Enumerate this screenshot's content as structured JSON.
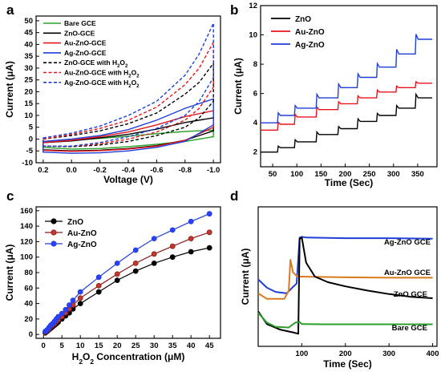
{
  "chart_data": [
    {
      "panel": "a",
      "type": "line",
      "xlabel": "Voltage (V)",
      "ylabel": "Current (μA)",
      "xlim": [
        0.25,
        -1.05
      ],
      "ylim": [
        -10,
        52
      ],
      "xticks": [
        0.2,
        0.0,
        -0.2,
        -0.4,
        -0.6,
        -0.8,
        -1.0
      ],
      "xtick_labels": [
        "0.2",
        "0.0",
        "-0.2",
        "-0.4",
        "-0.6",
        "-0.8",
        "-1.0"
      ],
      "yticks": [
        -10,
        -5,
        0,
        5,
        10,
        15,
        20,
        25,
        30,
        35,
        40,
        45,
        50
      ],
      "ytick_labels": [
        "-10",
        "-5",
        "0",
        "5",
        "10",
        "15",
        "20",
        "25",
        "30",
        "35",
        "40",
        "45",
        "50"
      ],
      "legend": [
        {
          "label_parts": [
            "Bare GCE"
          ],
          "color": "#2ca02c",
          "dashed": false
        },
        {
          "label_parts": [
            "ZnO-GCE"
          ],
          "color": "#000000",
          "dashed": false
        },
        {
          "label_parts": [
            "Au-ZnO-GCE"
          ],
          "color": "#e8141c",
          "dashed": false
        },
        {
          "label_parts": [
            "Ag-ZnO-GCE"
          ],
          "color": "#1f3fd8",
          "dashed": false
        },
        {
          "label_parts": [
            "ZnO-GCE with H",
            "2",
            "O",
            "2"
          ],
          "color": "#000000",
          "dashed": true
        },
        {
          "label_parts": [
            "Au-ZnO-GCE with H",
            "2",
            "O",
            "2"
          ],
          "color": "#e8141c",
          "dashed": true
        },
        {
          "label_parts": [
            "Ag-ZnO-GCE with H",
            "2",
            "O",
            "2"
          ],
          "color": "#1f3fd8",
          "dashed": true
        }
      ],
      "series": [
        {
          "name": "Bare GCE",
          "color": "#2ca02c",
          "dashed": false,
          "upper": [
            [
              0.2,
              -1
            ],
            [
              0.0,
              -0.5
            ],
            [
              -0.2,
              0.3
            ],
            [
              -0.4,
              1.2
            ],
            [
              -0.6,
              2.3
            ],
            [
              -0.8,
              3.2
            ],
            [
              -1.0,
              3.8
            ]
          ],
          "lower": [
            [
              0.2,
              -3.5
            ],
            [
              0.0,
              -4.2
            ],
            [
              -0.2,
              -4.0
            ],
            [
              -0.4,
              -3.2
            ],
            [
              -0.6,
              -2.2
            ],
            [
              -0.8,
              -1.0
            ],
            [
              -1.0,
              1.0
            ]
          ]
        },
        {
          "name": "ZnO-GCE",
          "color": "#000000",
          "dashed": false,
          "upper": [
            [
              0.2,
              -1.5
            ],
            [
              0.0,
              -0.8
            ],
            [
              -0.2,
              0.5
            ],
            [
              -0.4,
              2.0
            ],
            [
              -0.6,
              4.2
            ],
            [
              -0.8,
              7.0
            ],
            [
              -1.0,
              9.0
            ]
          ],
          "lower": [
            [
              0.2,
              -4.5
            ],
            [
              0.0,
              -5.0
            ],
            [
              -0.2,
              -4.7
            ],
            [
              -0.4,
              -4.0
            ],
            [
              -0.6,
              -2.8
            ],
            [
              -0.8,
              -0.5
            ],
            [
              -1.0,
              3.5
            ]
          ]
        },
        {
          "name": "Au-ZnO-GCE",
          "color": "#e8141c",
          "dashed": false,
          "upper": [
            [
              0.2,
              -1.5
            ],
            [
              0.0,
              -0.5
            ],
            [
              -0.2,
              1.0
            ],
            [
              -0.4,
              3.0
            ],
            [
              -0.6,
              6.0
            ],
            [
              -0.8,
              9.5
            ],
            [
              -1.0,
              12.0
            ]
          ],
          "lower": [
            [
              0.2,
              -4.7
            ],
            [
              0.0,
              -5.2
            ],
            [
              -0.2,
              -4.9
            ],
            [
              -0.4,
              -4.2
            ],
            [
              -0.6,
              -3.0
            ],
            [
              -0.8,
              -0.5
            ],
            [
              -1.0,
              5.0
            ]
          ]
        },
        {
          "name": "Ag-ZnO-GCE",
          "color": "#1f3fd8",
          "dashed": false,
          "upper": [
            [
              0.2,
              -1.0
            ],
            [
              0.0,
              0.0
            ],
            [
              -0.2,
              1.5
            ],
            [
              -0.4,
              4.0
            ],
            [
              -0.6,
              8.0
            ],
            [
              -0.8,
              13.0
            ],
            [
              -1.0,
              17.0
            ]
          ],
          "lower": [
            [
              0.2,
              -5.5
            ],
            [
              0.0,
              -6.0
            ],
            [
              -0.2,
              -5.8
            ],
            [
              -0.4,
              -5.0
            ],
            [
              -0.6,
              -3.5
            ],
            [
              -0.8,
              -1.0
            ],
            [
              -1.0,
              6.0
            ]
          ]
        },
        {
          "name": "ZnO-GCE with H2O2",
          "color": "#000000",
          "dashed": true,
          "upper": [
            [
              0.2,
              0.0
            ],
            [
              0.0,
              1.5
            ],
            [
              -0.2,
              3.5
            ],
            [
              -0.4,
              6.5
            ],
            [
              -0.6,
              11.0
            ],
            [
              -0.8,
              19.0
            ],
            [
              -0.9,
              24.0
            ],
            [
              -1.0,
              32.0
            ]
          ],
          "lower": [
            [
              0.2,
              -3.0
            ],
            [
              0.0,
              -3.2
            ],
            [
              -0.2,
              -2.5
            ],
            [
              -0.4,
              -1.0
            ],
            [
              -0.6,
              1.5
            ],
            [
              -0.8,
              5.0
            ],
            [
              -0.9,
              9.0
            ],
            [
              -1.0,
              16.0
            ]
          ]
        },
        {
          "name": "Au-ZnO-GCE with H2O2",
          "color": "#e8141c",
          "dashed": true,
          "upper": [
            [
              0.2,
              0.0
            ],
            [
              0.0,
              2.0
            ],
            [
              -0.2,
              4.5
            ],
            [
              -0.4,
              8.0
            ],
            [
              -0.6,
              13.5
            ],
            [
              -0.8,
              23.0
            ],
            [
              -0.9,
              30.0
            ],
            [
              -1.0,
              41.0
            ]
          ],
          "lower": [
            [
              0.2,
              -3.0
            ],
            [
              0.0,
              -3.0
            ],
            [
              -0.2,
              -2.0
            ],
            [
              -0.4,
              0.0
            ],
            [
              -0.6,
              3.0
            ],
            [
              -0.8,
              8.0
            ],
            [
              -0.9,
              13.0
            ],
            [
              -1.0,
              22.0
            ]
          ]
        },
        {
          "name": "Ag-ZnO-GCE with H2O2",
          "color": "#1f3fd8",
          "dashed": true,
          "upper": [
            [
              0.2,
              0.5
            ],
            [
              0.0,
              2.5
            ],
            [
              -0.2,
              5.5
            ],
            [
              -0.4,
              10.0
            ],
            [
              -0.6,
              16.0
            ],
            [
              -0.8,
              27.0
            ],
            [
              -0.9,
              36.0
            ],
            [
              -1.0,
              49.0
            ]
          ],
          "lower": [
            [
              0.2,
              -3.0
            ],
            [
              0.0,
              -3.0
            ],
            [
              -0.2,
              -1.5
            ],
            [
              -0.4,
              1.0
            ],
            [
              -0.6,
              4.5
            ],
            [
              -0.8,
              10.0
            ],
            [
              -0.9,
              16.0
            ],
            [
              -1.0,
              26.0
            ]
          ]
        }
      ]
    },
    {
      "panel": "b",
      "type": "line",
      "xlabel": "Time (Sec)",
      "ylabel": "Current (μA)",
      "xlim": [
        25,
        390
      ],
      "ylim": [
        1,
        12
      ],
      "xticks": [
        50,
        100,
        150,
        200,
        250,
        300,
        350
      ],
      "xtick_labels": [
        "50",
        "100",
        "150",
        "200",
        "250",
        "300",
        "350"
      ],
      "yticks": [
        2,
        4,
        6,
        8,
        10,
        12
      ],
      "ytick_labels": [
        "2",
        "4",
        "6",
        "8",
        "10",
        "12"
      ],
      "legend_position": "top-left",
      "series": [
        {
          "name": "ZnO",
          "color": "#000000",
          "x_start": 25,
          "x_end": 380,
          "start_value": 2.0,
          "step_times": [
            60,
            95,
            140,
            185,
            225,
            265,
            305,
            345
          ],
          "levels": [
            2.0,
            2.3,
            2.7,
            3.2,
            3.6,
            4.1,
            4.5,
            5.0,
            5.7
          ]
        },
        {
          "name": "Au-ZnO",
          "color": "#e8141c",
          "x_start": 25,
          "x_end": 380,
          "start_value": 3.5,
          "step_times": [
            60,
            95,
            140,
            185,
            225,
            265,
            305,
            345
          ],
          "levels": [
            3.5,
            3.9,
            4.4,
            4.9,
            5.3,
            5.7,
            6.1,
            6.4,
            6.7
          ]
        },
        {
          "name": "Ag-ZnO",
          "color": "#1f3fd8",
          "x_start": 25,
          "x_end": 380,
          "start_value": 4.0,
          "step_times": [
            60,
            95,
            140,
            185,
            225,
            265,
            305,
            345
          ],
          "levels": [
            4.0,
            4.5,
            5.0,
            5.7,
            6.4,
            7.1,
            7.8,
            8.7,
            9.7
          ]
        }
      ]
    },
    {
      "panel": "c",
      "type": "line",
      "xlabel_parts": [
        "H",
        "2",
        "O",
        "2",
        " Concentration (μM)"
      ],
      "ylabel": "Current (μA)",
      "xlim": [
        -2,
        48
      ],
      "ylim": [
        -5,
        165
      ],
      "xticks": [
        0,
        5,
        10,
        15,
        20,
        25,
        30,
        35,
        40,
        45
      ],
      "xtick_labels": [
        "0",
        "5",
        "10",
        "15",
        "20",
        "25",
        "30",
        "35",
        "40",
        "45"
      ],
      "yticks": [
        0,
        20,
        40,
        60,
        80,
        100,
        120,
        140,
        160
      ],
      "ytick_labels": [
        "0",
        "20",
        "40",
        "60",
        "80",
        "100",
        "120",
        "140",
        "160"
      ],
      "legend_position": "top-left",
      "x": [
        0.5,
        1,
        1.5,
        2,
        2.5,
        3,
        3.5,
        4,
        5,
        6,
        7,
        8,
        10,
        15,
        20,
        25,
        30,
        35,
        40,
        45
      ],
      "series": [
        {
          "name": "ZnO",
          "color": "#000000",
          "fill": "#000000",
          "values": [
            2,
            4,
            6,
            8,
            10,
            12,
            14,
            16,
            20,
            24,
            28,
            33,
            40,
            55,
            70,
            82,
            92,
            100,
            107,
            112
          ]
        },
        {
          "name": "Au-ZnO",
          "color": "#8b1a1a",
          "fill": "#c0392b",
          "values": [
            3,
            5,
            7,
            10,
            12,
            14,
            17,
            19,
            23,
            28,
            33,
            38,
            47,
            63,
            78,
            92,
            104,
            114,
            124,
            132
          ]
        },
        {
          "name": "Ag-ZnO",
          "color": "#1f3fd8",
          "fill": "#2b3fff",
          "values": [
            4,
            6,
            9,
            12,
            14,
            17,
            20,
            23,
            27,
            32,
            38,
            44,
            55,
            74,
            92,
            109,
            124,
            135,
            146,
            156
          ]
        }
      ]
    },
    {
      "panel": "d",
      "type": "line",
      "xlabel": "Time (Sec)",
      "ylabel": "Current (μA)",
      "xlim": [
        0,
        410
      ],
      "ylim": [
        0,
        10
      ],
      "xticks": [
        100,
        200,
        300,
        400
      ],
      "xtick_labels": [
        "100",
        "200",
        "300",
        "400"
      ],
      "annotations": [
        {
          "text": "Ag-ZnO GCE",
          "color": "#000000"
        },
        {
          "text": "Au-ZnO GCE",
          "color": "#000000"
        },
        {
          "text": "ZnO GCE",
          "color": "#000000"
        },
        {
          "text": "Bare GCE",
          "color": "#000000"
        }
      ],
      "series": [
        {
          "name": "Ag-ZnO GCE",
          "color": "#1f3fd8",
          "points": [
            [
              0,
              4.8
            ],
            [
              20,
              4.2
            ],
            [
              40,
              3.9
            ],
            [
              65,
              3.8
            ],
            [
              78,
              4.2
            ],
            [
              88,
              4.5
            ],
            [
              95,
              7.8
            ],
            [
              100,
              7.85
            ],
            [
              110,
              7.8
            ],
            [
              200,
              7.75
            ],
            [
              300,
              7.75
            ],
            [
              400,
              7.72
            ]
          ]
        },
        {
          "name": "Au-ZnO GCE",
          "color": "#d9791f",
          "points": [
            [
              0,
              3.8
            ],
            [
              20,
              3.4
            ],
            [
              60,
              3.4
            ],
            [
              70,
              4.0
            ],
            [
              74,
              6.2
            ],
            [
              80,
              5.3
            ],
            [
              90,
              5.0
            ],
            [
              100,
              5.0
            ],
            [
              200,
              4.95
            ],
            [
              300,
              4.92
            ],
            [
              400,
              4.92
            ]
          ]
        },
        {
          "name": "ZnO GCE",
          "color": "#000000",
          "points": [
            [
              0,
              2.5
            ],
            [
              20,
              1.6
            ],
            [
              50,
              1.2
            ],
            [
              80,
              1.0
            ],
            [
              92,
              0.9
            ],
            [
              95,
              7.7
            ],
            [
              100,
              7.8
            ],
            [
              110,
              6.0
            ],
            [
              130,
              5.0
            ],
            [
              160,
              4.6
            ],
            [
              200,
              4.3
            ],
            [
              250,
              4.0
            ],
            [
              300,
              3.75
            ],
            [
              350,
              3.55
            ],
            [
              400,
              3.45
            ]
          ]
        },
        {
          "name": "Bare GCE",
          "color": "#2ca02c",
          "points": [
            [
              0,
              2.4
            ],
            [
              20,
              1.7
            ],
            [
              40,
              1.4
            ],
            [
              70,
              1.35
            ],
            [
              85,
              1.7
            ],
            [
              95,
              1.75
            ],
            [
              100,
              1.6
            ],
            [
              150,
              1.58
            ],
            [
              250,
              1.58
            ],
            [
              400,
              1.58
            ]
          ]
        }
      ]
    }
  ]
}
